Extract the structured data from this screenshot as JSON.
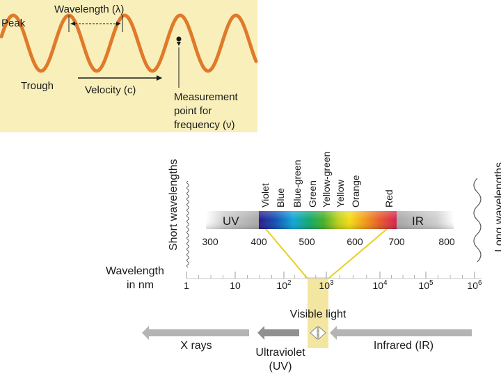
{
  "wave": {
    "peak_label": "Peak",
    "trough_label": "Trough",
    "wavelength_label": "Wavelength (λ)",
    "velocity_label": "Velocity (c)",
    "measurement_line1": "Measurement",
    "measurement_line2": "point for",
    "measurement_line3": "frequency (ν)",
    "wave_color": "#e07a2a"
  },
  "spectrum": {
    "short_label": "Short wavelengths",
    "long_label": "Long wavelengths",
    "colors": [
      "Violet",
      "Blue",
      "Blue-green",
      "Green",
      "Yellow-green",
      "Yellow",
      "Orange",
      "Red"
    ],
    "uv_label": "UV",
    "ir_label": "IR",
    "nm_ticks": [
      "300",
      "400",
      "500",
      "600",
      "700",
      "800"
    ],
    "axis_label_line1": "Wavelength",
    "axis_label_line2": "in nm",
    "log_ticks": [
      {
        "base": "1",
        "exp": ""
      },
      {
        "base": "10",
        "exp": ""
      },
      {
        "base": "10",
        "exp": "2"
      },
      {
        "base": "10",
        "exp": "3"
      },
      {
        "base": "10",
        "exp": "4"
      },
      {
        "base": "10",
        "exp": "5"
      },
      {
        "base": "10",
        "exp": "6"
      }
    ],
    "visible_label": "Visible light",
    "xray_label": "X rays",
    "uv_region_line1": "Ultraviolet",
    "uv_region_line2": "(UV)",
    "ir_region_label": "Infrared (IR)",
    "highlight_color": "#f3e6a0"
  }
}
